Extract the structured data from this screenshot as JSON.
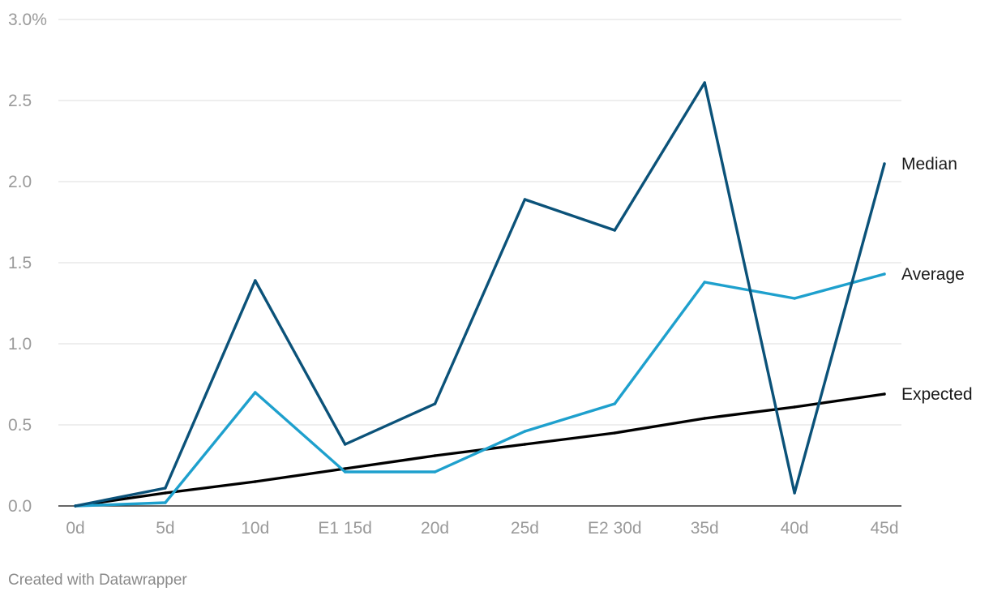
{
  "chart_data": {
    "type": "line",
    "title": "",
    "xlabel": "",
    "ylabel": "",
    "categories": [
      "0d",
      "5d",
      "10d",
      "E1 15d",
      "20d",
      "25d",
      "E2 30d",
      "35d",
      "40d",
      "45d"
    ],
    "y_ticks": [
      "0.0",
      "0.5",
      "1.0",
      "1.5",
      "2.0",
      "2.5",
      "3.0%"
    ],
    "y_tick_values": [
      0,
      0.5,
      1.0,
      1.5,
      2.0,
      2.5,
      3.0
    ],
    "ylim": [
      0,
      3.0
    ],
    "grid": true,
    "legend": "direct labels at line ends (right)",
    "series": [
      {
        "name": "Median",
        "color": "#0b5279",
        "values": [
          0.0,
          0.11,
          1.39,
          0.38,
          0.63,
          1.89,
          1.7,
          2.61,
          0.08,
          2.11
        ]
      },
      {
        "name": "Average",
        "color": "#1ea0cd",
        "values": [
          0.0,
          0.02,
          0.7,
          0.21,
          0.21,
          0.46,
          0.63,
          1.38,
          1.28,
          1.43
        ]
      },
      {
        "name": "Expected",
        "color": "#000000",
        "values": [
          0.0,
          0.08,
          0.15,
          0.23,
          0.31,
          0.38,
          0.45,
          0.54,
          0.61,
          0.69
        ]
      }
    ]
  },
  "footer": {
    "credit": "Created with Datawrapper"
  }
}
